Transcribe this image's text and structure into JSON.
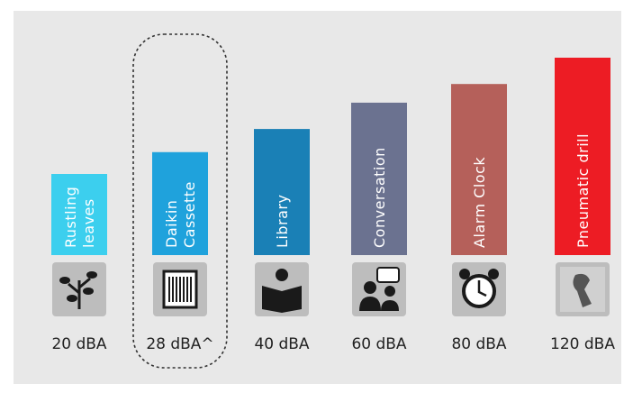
{
  "chart_data": {
    "type": "bar",
    "log_scale": true,
    "categories": [
      [
        "Rustling",
        "leaves"
      ],
      [
        "Daikin",
        "Cassette"
      ],
      [
        "Library"
      ],
      [
        "Conversation"
      ],
      [
        "Alarm Clock"
      ],
      [
        "Pneumatic drill"
      ]
    ],
    "values": [
      20,
      28,
      40,
      60,
      80,
      120
    ],
    "value_labels": [
      "20 dBA",
      "28 dBA^",
      "40 dBA",
      "60 dBA",
      "80 dBA",
      "120 dBA"
    ],
    "colors": [
      "#3ccfee",
      "#1fa2dc",
      "#1a80b6",
      "#6b7290",
      "#b5605a",
      "#ed1c24"
    ]
  }
}
